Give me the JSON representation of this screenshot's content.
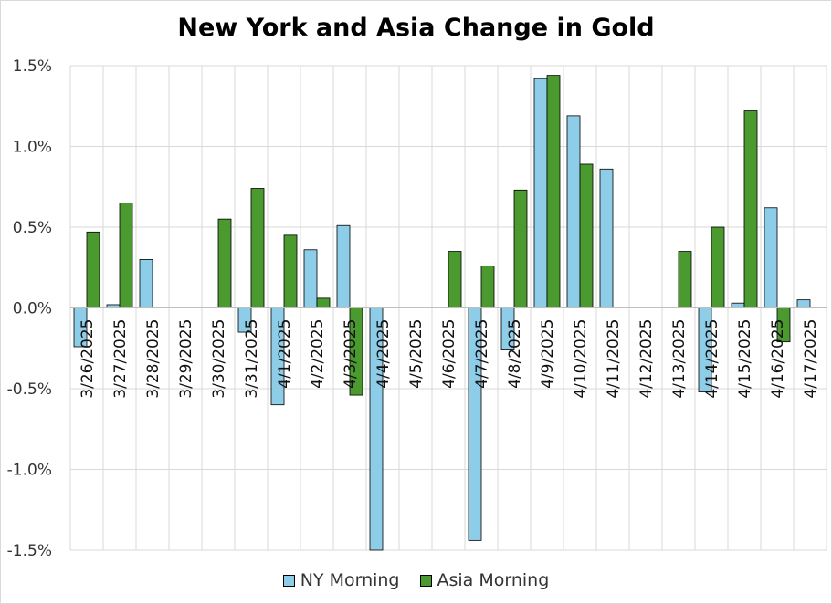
{
  "chart_data": {
    "type": "bar",
    "title": "New York and Asia Change in Gold",
    "xlabel": "",
    "ylabel": "",
    "ylim": [
      -1.5,
      1.5
    ],
    "yticks": [
      "1.5%",
      "1.0%",
      "0.5%",
      "0.0%",
      "-0.5%",
      "-1.0%",
      "-1.5%"
    ],
    "ytick_values": [
      1.5,
      1.0,
      0.5,
      0.0,
      -0.5,
      -1.0,
      -1.5
    ],
    "categories": [
      "3/26/2025",
      "3/27/2025",
      "3/28/2025",
      "3/29/2025",
      "3/30/2025",
      "3/31/2025",
      "4/1/2025",
      "4/2/2025",
      "4/3/2025",
      "4/4/2025",
      "4/5/2025",
      "4/6/2025",
      "4/7/2025",
      "4/8/2025",
      "4/9/2025",
      "4/10/2025",
      "4/11/2025",
      "4/12/2025",
      "4/13/2025",
      "4/14/2025",
      "4/15/2025",
      "4/16/2025",
      "4/17/2025"
    ],
    "series": [
      {
        "name": "NY Morning",
        "color": "#8ecde8",
        "values": [
          -0.24,
          0.02,
          0.3,
          null,
          null,
          -0.15,
          -0.6,
          0.36,
          0.51,
          -1.6,
          null,
          null,
          -1.44,
          -0.26,
          1.42,
          1.19,
          0.86,
          null,
          null,
          -0.52,
          0.03,
          0.62,
          0.05
        ]
      },
      {
        "name": "Asia Morning",
        "color": "#4a9a2f",
        "values": [
          0.47,
          0.65,
          null,
          null,
          0.55,
          0.74,
          0.45,
          0.06,
          -0.54,
          null,
          null,
          0.35,
          0.26,
          0.73,
          1.44,
          0.89,
          null,
          null,
          0.35,
          0.5,
          1.22,
          -0.21,
          null
        ]
      }
    ],
    "grid": true,
    "legend_position": "bottom"
  }
}
